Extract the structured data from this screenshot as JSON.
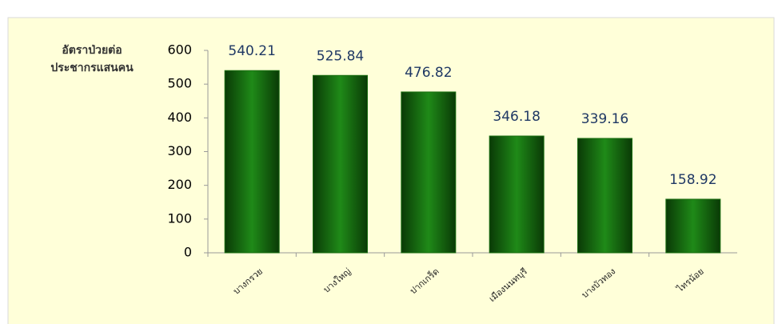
{
  "chart_data": {
    "type": "bar",
    "ylabel": [
      "อัตราป่วยต่อ",
      "ประชากรแสนคน"
    ],
    "categories": [
      "บางกรวย",
      "บางใหญ่",
      "ปากเกร็ด",
      "เมืองนนทบุรี",
      "บางบัวทอง",
      "ไทรน้อย"
    ],
    "values": [
      540.21,
      525.84,
      476.82,
      346.18,
      339.16,
      158.92
    ],
    "color": "#1a6e12",
    "ylim": [
      0,
      600
    ],
    "yticks": [
      0,
      100,
      200,
      300,
      400,
      500,
      600
    ],
    "grid": false
  }
}
